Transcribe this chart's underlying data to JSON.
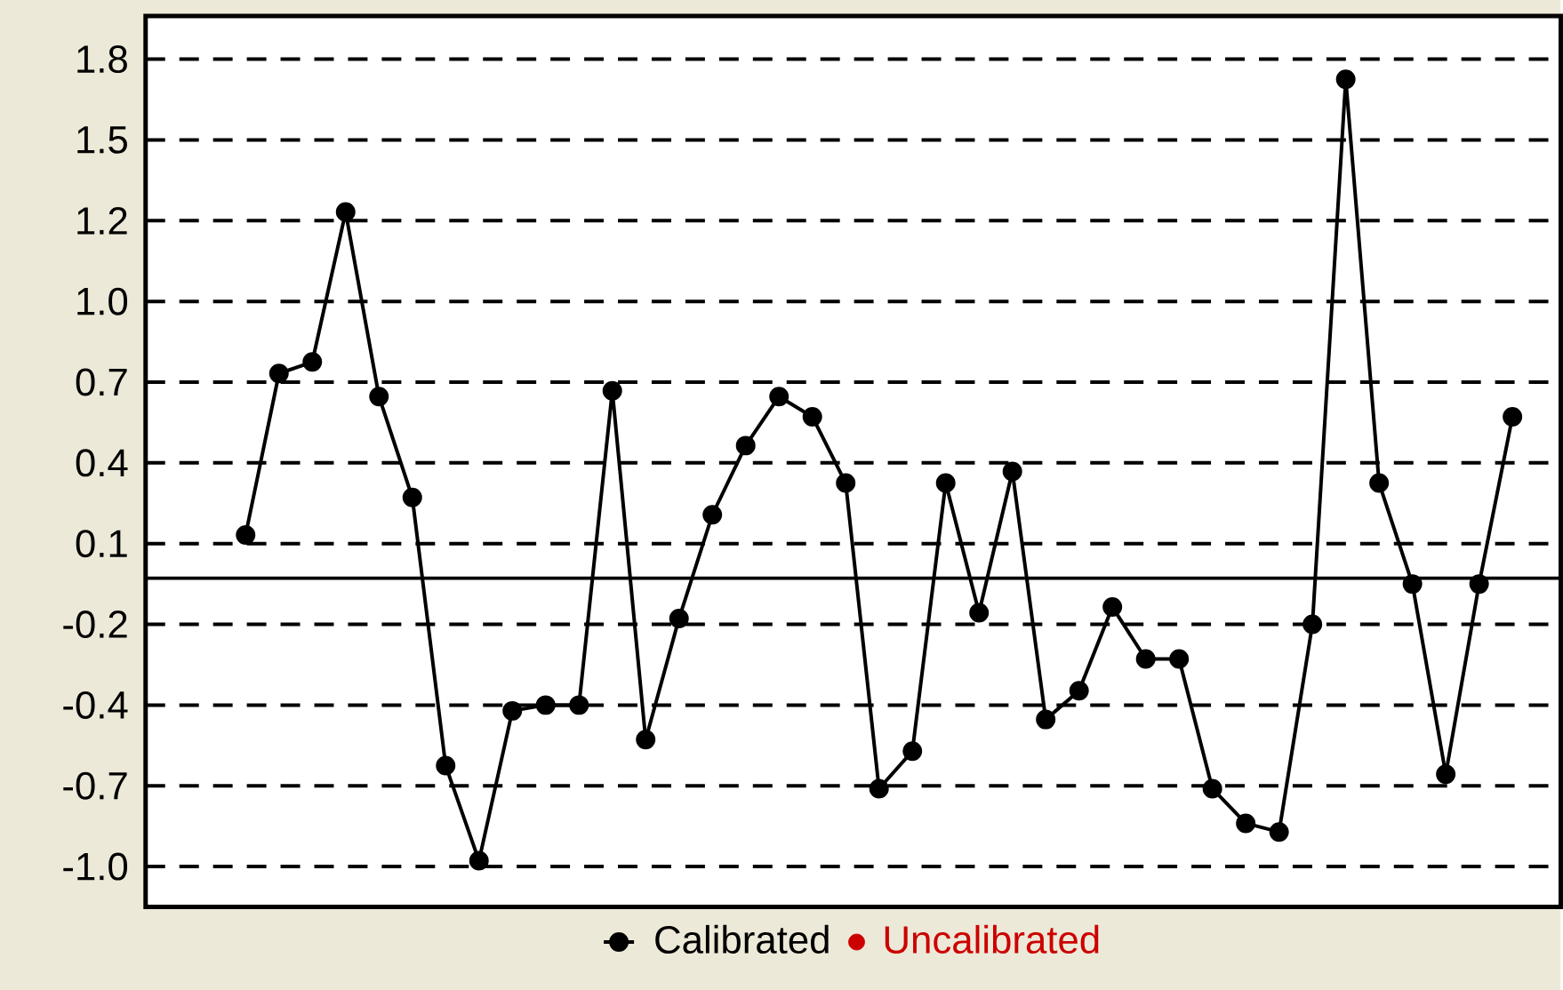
{
  "chart_data": {
    "type": "line",
    "categories": [
      null,
      null,
      null,
      null,
      null,
      null,
      null,
      null,
      null,
      null,
      null,
      null,
      null,
      null,
      null,
      null,
      null,
      null,
      null,
      null,
      null,
      null,
      null,
      null,
      null,
      null,
      null,
      null,
      null,
      null,
      null,
      null,
      null,
      null,
      null,
      null,
      null,
      null,
      null
    ],
    "series": [
      {
        "name": "Calibrated",
        "color": "#000000",
        "values": [
          0.15,
          0.71,
          0.75,
          1.27,
          0.63,
          0.28,
          -0.65,
          -0.98,
          -0.46,
          -0.44,
          -0.44,
          0.65,
          -0.56,
          -0.14,
          0.22,
          0.46,
          0.63,
          0.56,
          0.33,
          -0.73,
          -0.6,
          0.33,
          -0.12,
          0.37,
          -0.49,
          -0.39,
          -0.1,
          -0.28,
          -0.28,
          -0.73,
          -0.85,
          -0.88,
          -0.16,
          1.73,
          0.33,
          -0.02,
          -0.68,
          -0.02,
          0.56
        ]
      },
      {
        "name": "Uncalibrated",
        "color": "#cc0000",
        "values": [
          null,
          null,
          null,
          null,
          null,
          null,
          null,
          null,
          null,
          null,
          null,
          null,
          null,
          null,
          null,
          null,
          null,
          null,
          null,
          null,
          null,
          null,
          null,
          null,
          null,
          null,
          null,
          null,
          null,
          null,
          null,
          null,
          null,
          null,
          null,
          null,
          null,
          null,
          null
        ]
      }
    ],
    "ylim": [
      -1.14,
      1.95
    ],
    "yticks": [
      1.8,
      {
        "value": 1.52,
        "label": "1.5"
      },
      {
        "value": 1.24,
        "label": "1.2"
      },
      {
        "value": 0.96,
        "label": "1.0"
      },
      {
        "value": 0.68,
        "label": "0.7"
      },
      0.4,
      {
        "value": 0.12,
        "label": "0.1"
      },
      {
        "value": -0.16,
        "label": "-0.2"
      },
      {
        "value": -0.44,
        "label": "-0.4"
      },
      {
        "value": -0.72,
        "label": "-0.7"
      },
      {
        "value": -1.0,
        "label": "-1.0"
      }
    ],
    "ref_lines": [
      {
        "axis": "y",
        "value": 0,
        "color": "#000000"
      }
    ],
    "grid": "y",
    "legend": "bottom",
    "marker": "circle",
    "line_style": "solid"
  }
}
